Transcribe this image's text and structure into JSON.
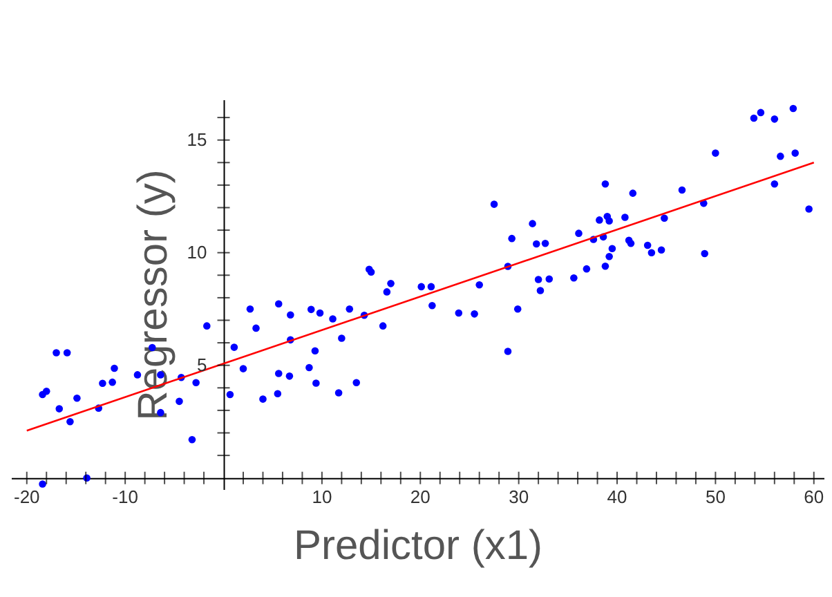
{
  "chart_data": {
    "type": "scatter",
    "xlabel": "Predictor (x1)",
    "ylabel": "Regressor (y)",
    "xlim": [
      -21.6,
      61
    ],
    "ylim": [
      -0.5,
      16.8
    ],
    "marker": "circle",
    "xticks": [
      -20,
      {
        "value": -18,
        "label": null
      },
      {
        "value": -16,
        "label": null
      },
      {
        "value": -14,
        "label": null
      },
      {
        "value": -12,
        "label": null
      },
      -10,
      {
        "value": -8,
        "label": null
      },
      {
        "value": -6,
        "label": null
      },
      {
        "value": -4,
        "label": null
      },
      {
        "value": -2,
        "label": null
      },
      {
        "value": 2,
        "label": null
      },
      {
        "value": 4,
        "label": null
      },
      {
        "value": 6,
        "label": null
      },
      {
        "value": 8,
        "label": null
      },
      10,
      {
        "value": 12,
        "label": null
      },
      {
        "value": 14,
        "label": null
      },
      {
        "value": 16,
        "label": null
      },
      {
        "value": 18,
        "label": null
      },
      20,
      {
        "value": 22,
        "label": null
      },
      {
        "value": 24,
        "label": null
      },
      {
        "value": 26,
        "label": null
      },
      {
        "value": 28,
        "label": null
      },
      30,
      {
        "value": 32,
        "label": null
      },
      {
        "value": 34,
        "label": null
      },
      {
        "value": 36,
        "label": null
      },
      {
        "value": 38,
        "label": null
      },
      40,
      {
        "value": 42,
        "label": null
      },
      {
        "value": 44,
        "label": null
      },
      {
        "value": 46,
        "label": null
      },
      {
        "value": 48,
        "label": null
      },
      50,
      {
        "value": 52,
        "label": null
      },
      {
        "value": 54,
        "label": null
      },
      {
        "value": 56,
        "label": null
      },
      {
        "value": 58,
        "label": null
      },
      60
    ],
    "yticks": [
      {
        "value": 1,
        "label": null
      },
      {
        "value": 2,
        "label": null
      },
      {
        "value": 3,
        "label": null
      },
      {
        "value": 4,
        "label": null
      },
      5,
      {
        "value": 6,
        "label": null
      },
      {
        "value": 7,
        "label": null
      },
      {
        "value": 8,
        "label": null
      },
      {
        "value": 9,
        "label": null
      },
      10,
      {
        "value": 11,
        "label": null
      },
      {
        "value": 12,
        "label": null
      },
      {
        "value": 13,
        "label": null
      },
      {
        "value": 14,
        "label": null
      },
      15,
      {
        "value": 16,
        "label": null
      }
    ],
    "series": [
      {
        "color": "#0000ff",
        "x": [
          -18.4,
          -18.0,
          -18.4,
          -17.0,
          -15.9,
          -16.7,
          -15.6,
          -14.9,
          -13.9,
          -12.7,
          -12.3,
          -11.3,
          -11.1,
          -8.75,
          -7.25,
          -6.4,
          -6.4,
          -4.5,
          -4.3,
          -3.2,
          -2.8,
          -1.7,
          0.66,
          1.08,
          2.0,
          2.7,
          3.3,
          4.0,
          5.6,
          6.8,
          6.8,
          5.6,
          5.5,
          6.7,
          8.7,
          8.9,
          9.3,
          9.4,
          9.8,
          11.1,
          11.7,
          12.0,
          12.8,
          13.5,
          14.3,
          14.8,
          15.0,
          16.2,
          16.6,
          17.0,
          20.1,
          21.1,
          21.2,
          23.9,
          25.5,
          26.0,
          27.5,
          28.9,
          28.9,
          29.3,
          29.9,
          31.4,
          31.8,
          32.7,
          32.0,
          32.2,
          33.1,
          35.6,
          36.1,
          36.9,
          37.6,
          38.2,
          38.6,
          38.8,
          38.8,
          39.0,
          39.2,
          39.2,
          39.5,
          40.8,
          41.2,
          41.4,
          41.6,
          43.1,
          43.5,
          44.5,
          44.8,
          46.6,
          48.8,
          48.9,
          50.0,
          53.9,
          54.6,
          56.0,
          56.0,
          56.6,
          57.9,
          58.1,
          59.5
        ],
        "values": [
          3.7,
          3.85,
          -0.27,
          5.56,
          5.56,
          3.07,
          2.5,
          3.54,
          0.0,
          3.1,
          4.2,
          4.25,
          4.87,
          4.58,
          5.79,
          4.58,
          2.9,
          3.4,
          4.46,
          1.7,
          4.23,
          6.75,
          3.7,
          5.8,
          4.85,
          7.5,
          6.65,
          3.5,
          7.73,
          7.24,
          6.13,
          4.64,
          3.74,
          4.52,
          4.9,
          7.48,
          5.64,
          4.21,
          7.32,
          7.06,
          3.78,
          6.2,
          7.5,
          4.23,
          7.22,
          9.26,
          9.14,
          6.75,
          8.26,
          8.63,
          8.49,
          8.49,
          7.65,
          7.32,
          7.28,
          8.57,
          12.15,
          5.62,
          9.39,
          10.63,
          7.5,
          11.29,
          10.39,
          10.41,
          8.81,
          8.32,
          8.83,
          8.88,
          10.86,
          9.28,
          10.59,
          11.45,
          10.7,
          13.05,
          9.4,
          11.61,
          11.41,
          9.83,
          10.18,
          11.57,
          10.55,
          10.41,
          12.64,
          10.33,
          10.0,
          10.12,
          11.53,
          12.78,
          12.19,
          9.96,
          14.42,
          15.97,
          16.22,
          15.93,
          13.05,
          14.28,
          16.4,
          14.42,
          11.94
        ]
      },
      {
        "type": "line",
        "color": "#ff0000",
        "line_style": "solid",
        "marker": "none",
        "x": [
          -20,
          60
        ],
        "values": [
          2.1,
          14.0
        ]
      }
    ]
  }
}
